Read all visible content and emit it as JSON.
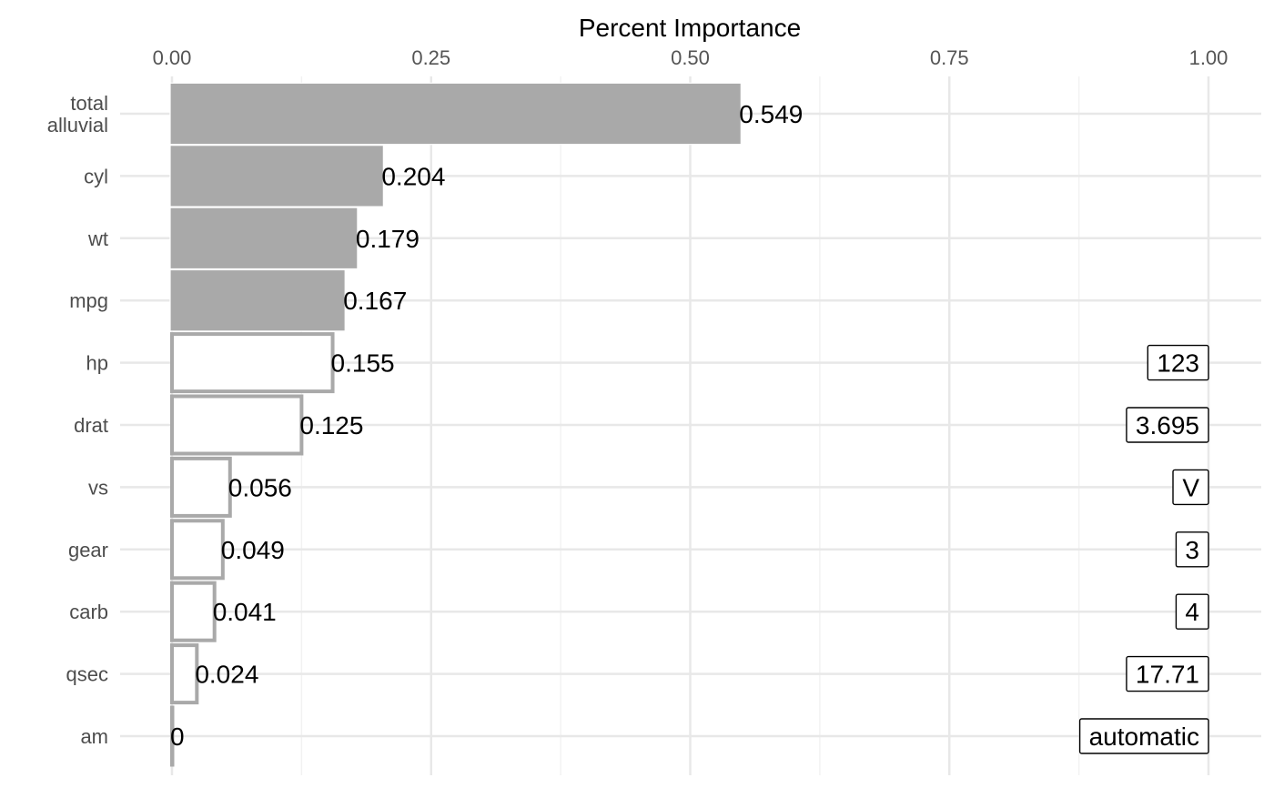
{
  "chart_data": {
    "type": "bar",
    "orientation": "horizontal",
    "xlabel": "Percent Importance",
    "xlabel_position": "top",
    "xlim": [
      0,
      1
    ],
    "x_ticks": [
      0,
      0.25,
      0.5,
      0.75,
      1
    ],
    "x_tick_labels": [
      "0.00",
      "0.25",
      "0.50",
      "0.75",
      "1.00"
    ],
    "grid": true,
    "categories": [
      [
        "total",
        "alluvial"
      ],
      [
        "cyl"
      ],
      [
        "wt"
      ],
      [
        "mpg"
      ],
      [
        "hp"
      ],
      [
        "drat"
      ],
      [
        "vs"
      ],
      [
        "gear"
      ],
      [
        "carb"
      ],
      [
        "qsec"
      ],
      [
        "am"
      ]
    ],
    "values": [
      0.549,
      0.204,
      0.179,
      0.167,
      0.155,
      0.125,
      0.056,
      0.049,
      0.041,
      0.024,
      0
    ],
    "value_labels": [
      "0.549",
      "0.204",
      "0.179",
      "0.167",
      "0.155",
      "0.125",
      "0.056",
      "0.049",
      "0.041",
      "0.024",
      "0"
    ],
    "filled": [
      true,
      true,
      true,
      true,
      false,
      false,
      false,
      false,
      false,
      false,
      false
    ],
    "box_labels": [
      "",
      "",
      "",
      "",
      "123",
      "3.695",
      "V",
      "3",
      "4",
      "17.71",
      "automatic"
    ],
    "colors": {
      "bar_fill": "#a9a9a9",
      "bar_outline": "#a9a9a9",
      "grid_major": "#e8e8e8",
      "grid_minor": "#f2f2f2",
      "label_box_border": "#000000"
    }
  }
}
